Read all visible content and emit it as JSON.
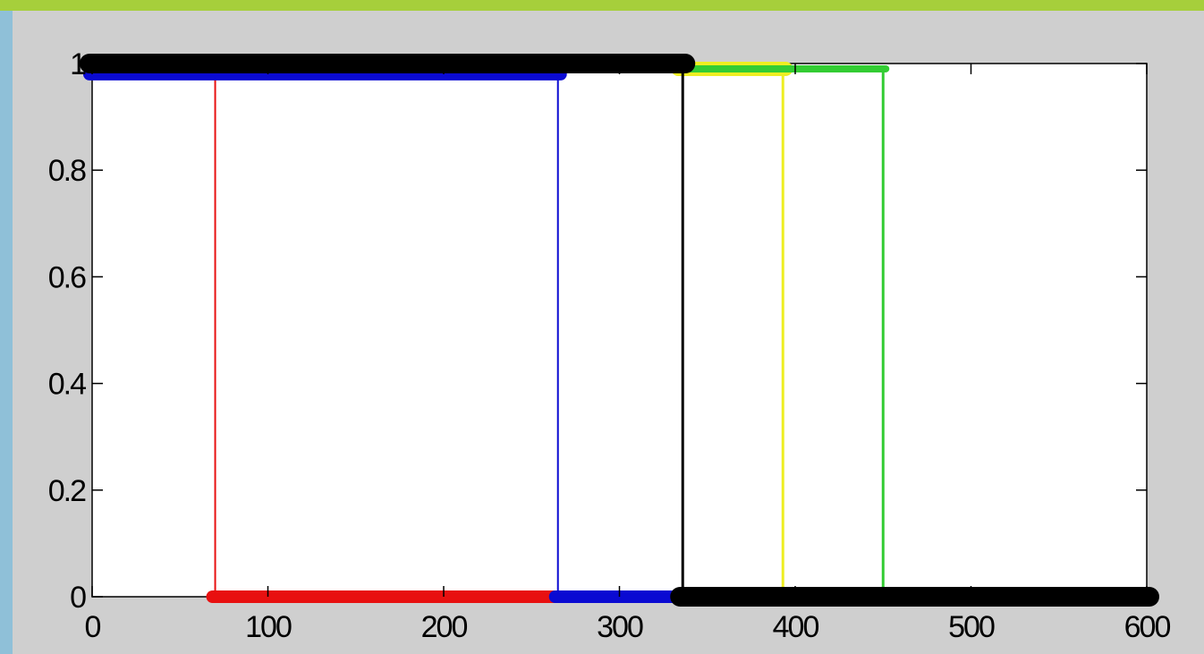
{
  "chart_data": {
    "type": "line",
    "title": "",
    "xlabel": "",
    "ylabel": "",
    "xlim": [
      0,
      600
    ],
    "ylim": [
      0,
      1
    ],
    "xticks": [
      0,
      100,
      200,
      300,
      400,
      500,
      600
    ],
    "yticks": [
      0,
      0.2,
      0.4,
      0.6,
      0.8,
      1
    ],
    "xtick_labels": [
      "0",
      "100",
      "200",
      "300",
      "400",
      "500",
      "600"
    ],
    "ytick_labels": [
      "0",
      "0.2",
      "0.4",
      "0.6",
      "0.8",
      "1"
    ],
    "grid": false,
    "legend": "none",
    "series": [
      {
        "color": "#e81010",
        "lineWidth": 2,
        "markerWidth": 14,
        "points": [
          [
            70,
            1
          ],
          [
            70,
            0
          ],
          [
            265,
            0
          ]
        ]
      },
      {
        "color": "#0a0ad2",
        "lineWidth": 2,
        "markerWidth": 14,
        "points": [
          [
            0,
            0.98
          ],
          [
            265,
            0.98
          ],
          [
            265,
            0
          ],
          [
            335,
            0
          ]
        ]
      },
      {
        "color": "#eeee22",
        "lineWidth": 3,
        "markerWidth": 16,
        "points": [
          [
            335,
            0.99
          ],
          [
            393,
            0.99
          ],
          [
            393,
            0
          ]
        ]
      },
      {
        "color": "#33cc33",
        "lineWidth": 3,
        "markerWidth": 8,
        "points": [
          [
            340,
            0.99
          ],
          [
            450,
            0.99
          ],
          [
            450,
            0
          ]
        ]
      },
      {
        "color": "#000000",
        "lineWidth": 3,
        "markerWidth": 22,
        "points": [
          [
            0,
            1
          ],
          [
            336,
            1
          ],
          [
            336,
            0
          ],
          [
            600,
            0
          ]
        ]
      }
    ]
  }
}
